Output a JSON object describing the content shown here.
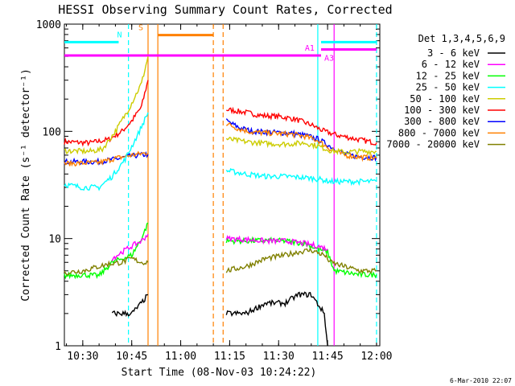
{
  "chart_data": {
    "type": "line",
    "title": "HESSI Observing Summary Count Rates, Corrected",
    "xlabel": "Start Time (08-Nov-03 10:24:22)",
    "ylabel": "Corrected Count Rate (s⁻¹ detector⁻¹)",
    "yscale": "log",
    "xlim": [
      "10:24:22",
      "12:01:00"
    ],
    "ylim": [
      1,
      1000
    ],
    "x_ticks": [
      "10:30",
      "10:45",
      "11:00",
      "11:15",
      "11:30",
      "11:45",
      "12:00"
    ],
    "y_ticks": [
      "1",
      "10",
      "100",
      "1000"
    ],
    "legend": {
      "title": "Det 1,3,4,5,6,9",
      "placement": "right",
      "entries": [
        {
          "name": "3 - 6 keV",
          "color": "#000000"
        },
        {
          "name": "6 - 12 keV",
          "color": "#ff00ff"
        },
        {
          "name": "12 - 25 keV",
          "color": "#00ff00"
        },
        {
          "name": "25 - 50 keV",
          "color": "#00ffff"
        },
        {
          "name": "50 - 100 keV",
          "color": "#cccc00"
        },
        {
          "name": "100 - 300 keV",
          "color": "#ff0000"
        },
        {
          "name": "300 - 800 keV",
          "color": "#0000ff"
        },
        {
          "name": "800 - 7000 keV",
          "color": "#ff8000"
        },
        {
          "name": "7000 - 20000 keV",
          "color": "#808000"
        }
      ]
    },
    "series": [
      {
        "name": "100 - 300 keV",
        "color": "#ff0000",
        "segments": [
          [
            [
              "10:24:22",
              80
            ],
            [
              "10:32",
              78
            ],
            [
              "10:38",
              84
            ],
            [
              "10:42",
              100
            ],
            [
              "10:45",
              125
            ],
            [
              "10:48",
              170
            ],
            [
              "10:50",
              300
            ]
          ],
          [
            [
              "11:14",
              160
            ],
            [
              "11:20",
              150
            ],
            [
              "11:25",
              140
            ],
            [
              "11:30",
              138
            ],
            [
              "11:35",
              130
            ],
            [
              "11:40",
              115
            ],
            [
              "11:44",
              100
            ],
            [
              "11:48",
              92
            ],
            [
              "11:52",
              87
            ],
            [
              "11:56",
              82
            ],
            [
              "12:00",
              78
            ]
          ]
        ]
      },
      {
        "name": "300 - 800 keV",
        "color": "#0000ff",
        "segments": [
          [
            [
              "10:24:22",
              52
            ],
            [
              "10:35",
              52
            ],
            [
              "10:40",
              55
            ],
            [
              "10:45",
              59
            ],
            [
              "10:50",
              61
            ]
          ],
          [
            [
              "11:14",
              125
            ],
            [
              "11:18",
              108
            ],
            [
              "11:22",
              100
            ],
            [
              "11:28",
              98
            ],
            [
              "11:34",
              96
            ],
            [
              "11:38",
              92
            ],
            [
              "11:42",
              85
            ],
            [
              "11:46",
              72
            ],
            [
              "11:50",
              62
            ],
            [
              "11:54",
              58
            ],
            [
              "12:00",
              57
            ]
          ]
        ]
      },
      {
        "name": "800 - 7000 keV",
        "color": "#ff8000",
        "segments": [
          [
            [
              "10:24:22",
              50
            ],
            [
              "10:35",
              51
            ],
            [
              "10:40",
              56
            ],
            [
              "10:45",
              60
            ],
            [
              "10:50",
              63
            ]
          ],
          [
            [
              "11:14",
              118
            ],
            [
              "11:18",
              105
            ],
            [
              "11:22",
              98
            ],
            [
              "11:28",
              96
            ],
            [
              "11:34",
              94
            ],
            [
              "11:38",
              90
            ],
            [
              "11:42",
              82
            ],
            [
              "11:46",
              68
            ],
            [
              "11:50",
              60
            ],
            [
              "11:54",
              58
            ],
            [
              "12:00",
              56
            ]
          ]
        ]
      },
      {
        "name": "50 - 100 keV",
        "color": "#cccc00",
        "segments": [
          [
            [
              "10:24:22",
              66
            ],
            [
              "10:32",
              65
            ],
            [
              "10:36",
              68
            ],
            [
              "10:40",
              100
            ],
            [
              "10:44",
              160
            ],
            [
              "10:48",
              280
            ],
            [
              "10:50",
              500
            ]
          ],
          [
            [
              "11:14",
              85
            ],
            [
              "11:20",
              80
            ],
            [
              "11:26",
              77
            ],
            [
              "11:32",
              76
            ],
            [
              "11:38",
              78
            ],
            [
              "11:42",
              73
            ],
            [
              "11:46",
              66
            ],
            [
              "11:50",
              64
            ],
            [
              "11:55",
              65
            ],
            [
              "12:00",
              65
            ]
          ]
        ]
      },
      {
        "name": "25 - 50 keV",
        "color": "#00ffff",
        "segments": [
          [
            [
              "10:24:22",
              32
            ],
            [
              "10:30",
              30
            ],
            [
              "10:35",
              30
            ],
            [
              "10:39",
              38
            ],
            [
              "10:43",
              55
            ],
            [
              "10:47",
              95
            ],
            [
              "10:50",
              150
            ]
          ],
          [
            [
              "11:14",
              43
            ],
            [
              "11:20",
              40
            ],
            [
              "11:26",
              38
            ],
            [
              "11:32",
              38
            ],
            [
              "11:38",
              37
            ],
            [
              "11:42",
              36
            ],
            [
              "11:46",
              34
            ],
            [
              "11:50",
              34
            ],
            [
              "11:55",
              34
            ],
            [
              "12:00",
              34
            ]
          ]
        ]
      },
      {
        "name": "12 - 25 keV",
        "color": "#00ff00",
        "segments": [
          [
            [
              "10:24:22",
              4.5
            ],
            [
              "10:30",
              4.6
            ],
            [
              "10:35",
              4.5
            ],
            [
              "10:39",
              6
            ],
            [
              "10:42",
              6.5
            ],
            [
              "10:45",
              7
            ],
            [
              "10:48",
              10
            ],
            [
              "10:50",
              14
            ]
          ],
          [
            [
              "11:14",
              9.5
            ],
            [
              "11:20",
              9.5
            ],
            [
              "11:26",
              9.6
            ],
            [
              "11:32",
              9.5
            ],
            [
              "11:38",
              9.0
            ],
            [
              "11:42",
              8.0
            ],
            [
              "11:45",
              7.5
            ],
            [
              "11:47",
              5
            ],
            [
              "11:55",
              4.6
            ],
            [
              "12:00",
              4.6
            ]
          ]
        ]
      },
      {
        "name": "6 - 12 keV",
        "color": "#ff00ff",
        "segments": [
          [
            [
              "10:39",
              6.5
            ],
            [
              "10:42",
              7.5
            ],
            [
              "10:45",
              8.5
            ],
            [
              "10:48",
              9.5
            ],
            [
              "10:50",
              11
            ]
          ],
          [
            [
              "11:14",
              10
            ],
            [
              "11:20",
              9.8
            ],
            [
              "11:26",
              9.5
            ],
            [
              "11:32",
              9.5
            ],
            [
              "11:38",
              9.0
            ],
            [
              "11:42",
              8.5
            ],
            [
              "11:45",
              8.0
            ]
          ]
        ]
      },
      {
        "name": "7000 - 20000 keV",
        "color": "#808000",
        "segments": [
          [
            [
              "10:24:22",
              4.8
            ],
            [
              "10:30",
              5.0
            ],
            [
              "10:35",
              5.5
            ],
            [
              "10:38",
              5.8
            ],
            [
              "10:42",
              6.0
            ],
            [
              "10:45",
              6.5
            ],
            [
              "10:48",
              6.0
            ],
            [
              "10:50",
              6.0
            ]
          ],
          [
            [
              "11:14",
              5.0
            ],
            [
              "11:20",
              5.5
            ],
            [
              "11:26",
              6.5
            ],
            [
              "11:32",
              7.0
            ],
            [
              "11:36",
              7.5
            ],
            [
              "11:40",
              7.8
            ],
            [
              "11:44",
              7.0
            ],
            [
              "11:46",
              6.0
            ],
            [
              "11:50",
              5.5
            ],
            [
              "11:55",
              5.0
            ],
            [
              "12:00",
              5.0
            ]
          ]
        ]
      },
      {
        "name": "3 - 6 keV",
        "color": "#000000",
        "segments": [
          [
            [
              "10:39",
              2
            ],
            [
              "10:42",
              2
            ],
            [
              "10:45",
              2
            ],
            [
              "10:48",
              2.5
            ],
            [
              "10:50",
              3
            ]
          ],
          [
            [
              "11:14",
              2
            ],
            [
              "11:20",
              2
            ],
            [
              "11:26",
              2.5
            ],
            [
              "11:32",
              2.5
            ],
            [
              "11:36",
              3
            ],
            [
              "11:40",
              3
            ],
            [
              "11:44",
              2
            ],
            [
              "11:45",
              1
            ]
          ]
        ]
      }
    ],
    "annotations": [
      {
        "text": "N",
        "color": "#00ffff"
      },
      {
        "text": "S",
        "color": "#ff8000"
      },
      {
        "text": "A1",
        "color": "#ff00ff"
      },
      {
        "text": "A3",
        "color": "#ff00ff"
      }
    ],
    "vertical_markers": [
      {
        "time": "10:44",
        "style": "dashed",
        "color": "#00ffff"
      },
      {
        "time": "10:50",
        "style": "solid",
        "color": "#ff8000"
      },
      {
        "time": "10:53",
        "style": "solid",
        "color": "#ff8000"
      },
      {
        "time": "11:10",
        "style": "dashed",
        "color": "#ff8000"
      },
      {
        "time": "11:13",
        "style": "dashed",
        "color": "#ff8000"
      },
      {
        "time": "11:42",
        "style": "solid",
        "color": "#00ffff"
      },
      {
        "time": "11:47",
        "style": "solid",
        "color": "#ff00ff"
      },
      {
        "time": "12:00",
        "style": "dashed",
        "color": "#00ffff"
      }
    ],
    "horizontal_bars": [
      {
        "label": "N",
        "color": "#00ffff",
        "from": "10:24:22",
        "to": "10:41",
        "level": 680
      },
      {
        "label": "S",
        "color": "#ff8000",
        "from": "10:53",
        "to": "11:10",
        "level": 790
      },
      {
        "label": "A1",
        "color": "#ff00ff",
        "from": "10:24:22",
        "to": "11:43",
        "level": 510
      },
      {
        "label": "A3",
        "color": "#ff00ff",
        "from": "11:43",
        "to": "12:00",
        "level": 580
      },
      {
        "label": "",
        "color": "#00ffff",
        "from": "11:43",
        "to": "12:00",
        "level": 680
      }
    ]
  },
  "footer": {
    "timestamp": "6-Mar-2010 22:07"
  }
}
